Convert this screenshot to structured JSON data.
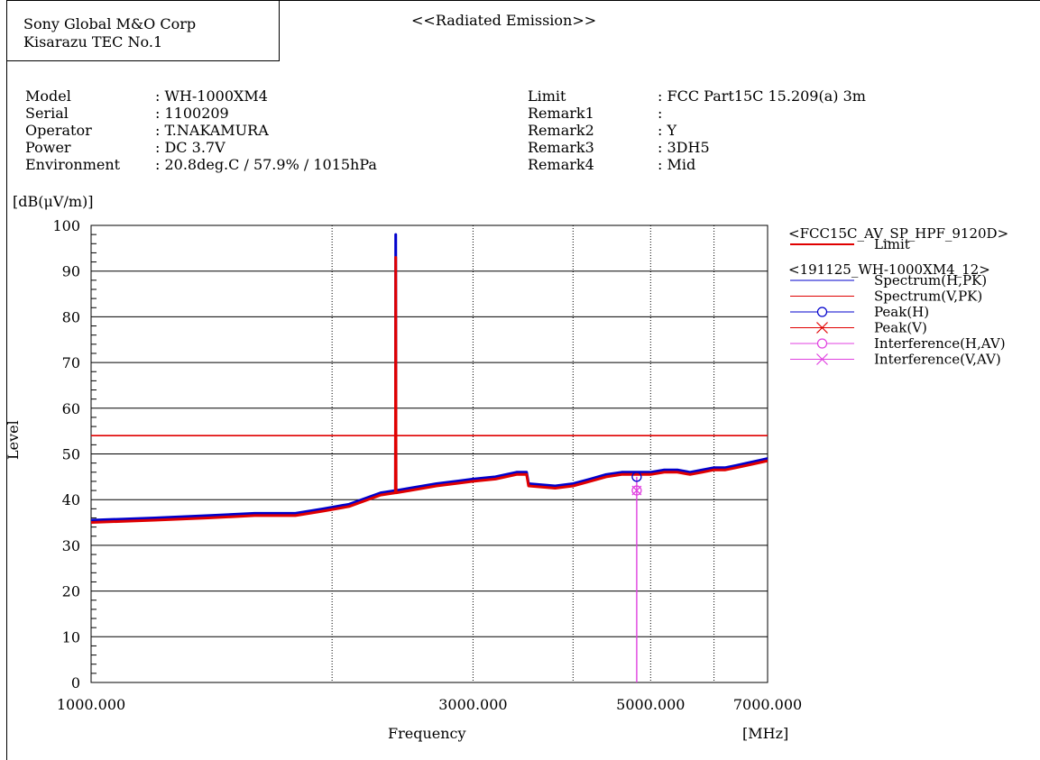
{
  "header": {
    "company_line1": "Sony Global M&O Corp",
    "company_line2": "Kisarazu TEC No.1",
    "report_title": "<<Radiated Emission>>"
  },
  "info_left": [
    {
      "label": "Model",
      "value": ": WH-1000XM4"
    },
    {
      "label": "Serial",
      "value": ": 1100209"
    },
    {
      "label": "Operator",
      "value": ": T.NAKAMURA"
    },
    {
      "label": "Power",
      "value": ": DC 3.7V"
    },
    {
      "label": "Environment",
      "value": ": 20.8deg.C / 57.9% / 1015hPa"
    }
  ],
  "info_right": [
    {
      "label": "Limit",
      "value": ": FCC Part15C 15.209(a) 3m"
    },
    {
      "label": "Remark1",
      "value": ":"
    },
    {
      "label": "Remark2",
      "value": ": Y"
    },
    {
      "label": "Remark3",
      "value": ": 3DH5"
    },
    {
      "label": "Remark4",
      "value": ": Mid"
    }
  ],
  "chart_data": {
    "type": "line",
    "ylabel": "Level",
    "yunit": "[dB(μV/m)]",
    "xlabel": "Frequency",
    "xunit": "[MHz]",
    "xscale": "log",
    "xlim": [
      1000,
      7000
    ],
    "ylim": [
      0,
      100
    ],
    "y_ticks": [
      0,
      10,
      20,
      30,
      40,
      50,
      60,
      70,
      80,
      90,
      100
    ],
    "x_tick_labels": [
      {
        "value": 1000,
        "label": "1000.000"
      },
      {
        "value": 3000,
        "label": "3000.000"
      },
      {
        "value": 5000,
        "label": "5000.000"
      },
      {
        "value": 7000,
        "label": "7000.000"
      }
    ],
    "x_gridlines": [
      2000,
      3000,
      4000,
      5000,
      6000
    ],
    "grid": true,
    "legend_position": "right",
    "legend": {
      "group1_title": "<FCC15C_AV_SP_HPF_9120D>",
      "group2_title": "<191125_WH-1000XM4_12>",
      "items": [
        {
          "name": "Limit",
          "group": 1,
          "style": "line",
          "color": "#e00000"
        },
        {
          "name": "Spectrum(H,PK)",
          "group": 2,
          "style": "line",
          "color": "#0000cc"
        },
        {
          "name": "Spectrum(V,PK)",
          "group": 2,
          "style": "line",
          "color": "#e00000"
        },
        {
          "name": "Peak(H)",
          "group": 2,
          "style": "circle",
          "color": "#0000cc"
        },
        {
          "name": "Peak(V)",
          "group": 2,
          "style": "cross",
          "color": "#e00000"
        },
        {
          "name": "Interference(H,AV)",
          "group": 2,
          "style": "circle",
          "color": "#e040e0"
        },
        {
          "name": "Interference(V,AV)",
          "group": 2,
          "style": "cross",
          "color": "#e040e0"
        }
      ]
    },
    "series": [
      {
        "name": "Limit",
        "color": "#e00000",
        "x": [
          1000,
          7000
        ],
        "y": [
          54,
          54
        ]
      },
      {
        "name": "Spectrum(H,PK)",
        "color": "#0000cc",
        "x": [
          1000,
          1200,
          1400,
          1600,
          1800,
          1950,
          2100,
          2300,
          2400,
          2402,
          2404,
          2500,
          2700,
          3000,
          3200,
          3400,
          3500,
          3520,
          3800,
          4000,
          4200,
          4400,
          4600,
          4800,
          5000,
          5200,
          5400,
          5600,
          5800,
          6000,
          6200,
          6400,
          6600,
          6800,
          7000
        ],
        "y": [
          35.5,
          36,
          36.5,
          37,
          37,
          38,
          39,
          41.5,
          42,
          98,
          42,
          42.5,
          43.5,
          44.5,
          45,
          46,
          46,
          43.5,
          43,
          43.5,
          44.5,
          45.5,
          46,
          46,
          46,
          46.5,
          46.5,
          46,
          46.5,
          47,
          47,
          47.5,
          48,
          48.5,
          49
        ]
      },
      {
        "name": "Spectrum(V,PK)",
        "color": "#e00000",
        "x": [
          1000,
          1200,
          1400,
          1600,
          1800,
          1950,
          2100,
          2300,
          2400,
          2402,
          2404,
          2500,
          2700,
          3000,
          3200,
          3400,
          3500,
          3520,
          3800,
          4000,
          4200,
          4400,
          4600,
          4800,
          5000,
          5200,
          5400,
          5600,
          5800,
          6000,
          6200,
          6400,
          6600,
          6800,
          7000
        ],
        "y": [
          35,
          35.5,
          36,
          36.5,
          36.5,
          37.5,
          38.5,
          41,
          41.5,
          93,
          41.5,
          42,
          43,
          44,
          44.5,
          45.5,
          45.5,
          43,
          42.5,
          43,
          44,
          45,
          45.5,
          45.5,
          45.5,
          46,
          46,
          45.5,
          46,
          46.5,
          46.5,
          47,
          47.5,
          48,
          48.5
        ]
      },
      {
        "name": "Interference(H,AV)",
        "color": "#e040e0",
        "x": [
          4804,
          4804,
          4804
        ],
        "y": [
          0,
          45,
          45
        ]
      }
    ],
    "markers": [
      {
        "series": "Peak(H)",
        "shape": "circle",
        "color": "#0000cc",
        "x": 4804,
        "y": 45
      },
      {
        "series": "Interference(H,AV)",
        "shape": "circle",
        "color": "#e040e0",
        "x": 4804,
        "y": 42
      },
      {
        "series": "Interference(V,AV)",
        "shape": "cross",
        "color": "#e040e0",
        "x": 4804,
        "y": 42
      }
    ]
  }
}
